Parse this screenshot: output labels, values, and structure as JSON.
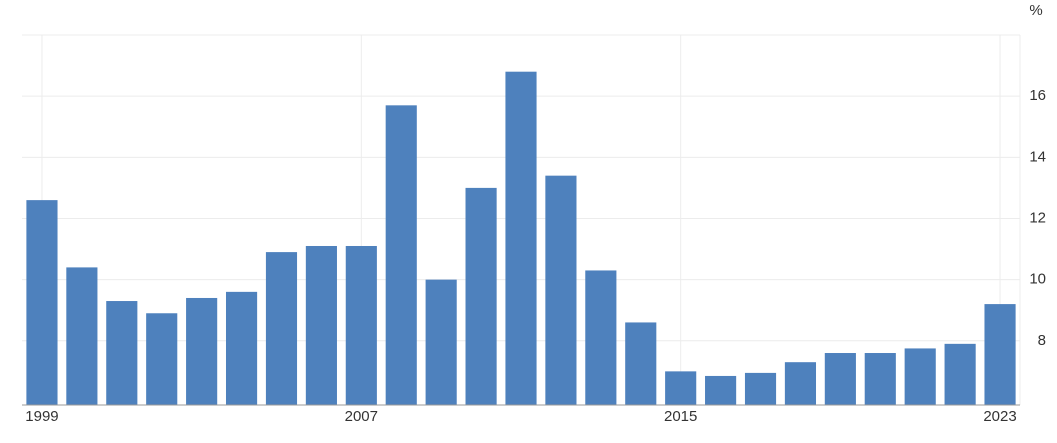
{
  "chart_data": {
    "type": "bar",
    "unit": "%",
    "categories": [
      "1999",
      null,
      null,
      null,
      null,
      null,
      null,
      null,
      "2007",
      null,
      null,
      null,
      null,
      null,
      null,
      null,
      "2015",
      null,
      null,
      null,
      null,
      null,
      null,
      null,
      "2023"
    ],
    "values": [
      12.6,
      10.4,
      9.3,
      8.9,
      9.4,
      9.6,
      10.9,
      11.1,
      11.1,
      15.7,
      10.0,
      13.0,
      16.8,
      13.4,
      10.3,
      8.6,
      7.0,
      6.85,
      6.95,
      7.3,
      7.6,
      7.6,
      7.75,
      7.9,
      9.2
    ],
    "color": "#4e81bd",
    "ylim": [
      5.9,
      18
    ],
    "yticks": [
      8,
      10,
      12,
      14,
      16
    ],
    "grid": true
  }
}
